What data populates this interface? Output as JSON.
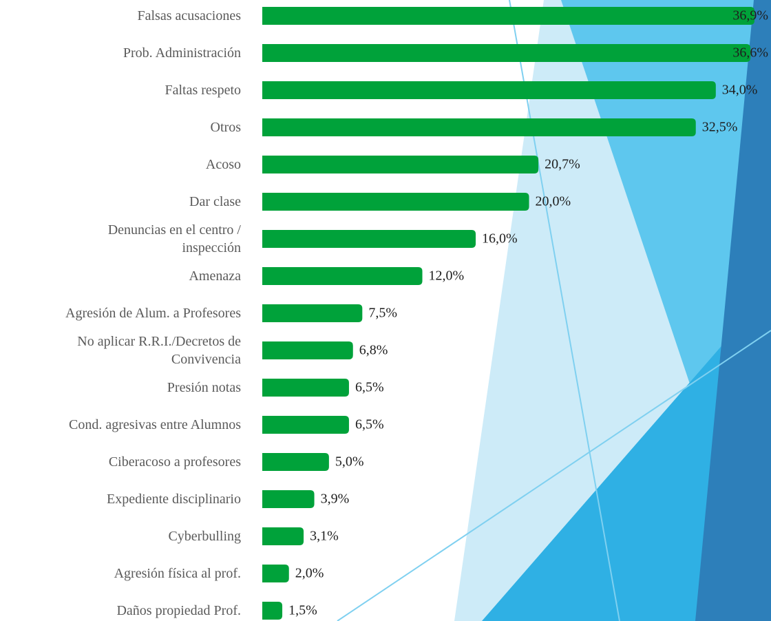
{
  "chart_data": {
    "type": "bar",
    "orientation": "horizontal",
    "categories": [
      "Falsas acusaciones",
      "Prob. Administración",
      "Faltas respeto",
      "Otros",
      "Acoso",
      "Dar clase",
      "Denuncias en el centro /\ninspección",
      "Amenaza",
      "Agresión de Alum. a Profesores",
      "No aplicar R.R.I./Decretos de\nConvivencia",
      "Presión notas",
      "Cond. agresivas entre Alumnos",
      "Ciberacoso a profesores",
      "Expediente disciplinario",
      "Cyberbulling",
      "Agresión física al prof.",
      "Daños propiedad Prof."
    ],
    "values": [
      36.9,
      36.6,
      34.0,
      32.5,
      20.7,
      20.0,
      16.0,
      12.0,
      7.5,
      6.8,
      6.5,
      6.5,
      5.0,
      3.9,
      3.1,
      2.0,
      1.5
    ],
    "value_labels": [
      "36,9%",
      "36,6%",
      "34,0%",
      "32,5%",
      "20,7%",
      "20,0%",
      "16,0%",
      "12,0%",
      "7,5%",
      "6,8%",
      "6,5%",
      "6,5%",
      "5,0%",
      "3,9%",
      "3,1%",
      "2,0%",
      "1,5%"
    ],
    "color": "#00a23a"
  }
}
